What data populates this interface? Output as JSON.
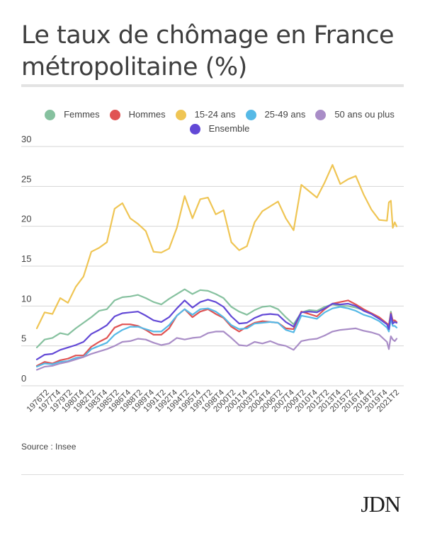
{
  "header": {
    "title_line1": "Le taux de chômage en France",
    "title_line2": "métropolitaine (%)"
  },
  "footer": {
    "source": "Source : Insee",
    "logo": "JDN"
  },
  "chart_data": {
    "type": "line",
    "title": "Le taux de chômage en France métropolitaine (%)",
    "xlabel": "",
    "ylabel": "",
    "ylim": [
      0,
      30
    ],
    "yticks": [
      "0",
      "5",
      "10",
      "15",
      "20",
      "25",
      "30"
    ],
    "grid": true,
    "legend_position": "top-center",
    "x_tick_labels": [
      "1976T2",
      "1977T4",
      "1979T2",
      "1980T4",
      "1982T2",
      "1983T4",
      "1985T2",
      "1986T4",
      "1988T2",
      "1989T4",
      "1991T2",
      "1992T4",
      "1994T2",
      "1995T4",
      "1997T2",
      "1998T4",
      "2000T2",
      "2001T4",
      "2003T2",
      "2004T4",
      "2006T2",
      "2007T4",
      "2009T2",
      "2010T4",
      "2012T2",
      "2013T4",
      "2015T2",
      "2016T4",
      "2018T2",
      "2019T4",
      "2021T2"
    ],
    "x_range": [
      "1975T1",
      "2021T2"
    ],
    "x": [
      1975.0,
      1976.0,
      1977.0,
      1978.0,
      1979.0,
      1980.0,
      1981.0,
      1982.0,
      1983.0,
      1984.0,
      1985.0,
      1986.0,
      1987.0,
      1988.0,
      1989.0,
      1990.0,
      1991.0,
      1992.0,
      1993.0,
      1994.0,
      1995.0,
      1996.0,
      1997.0,
      1998.0,
      1999.0,
      2000.0,
      2001.0,
      2002.0,
      2003.0,
      2004.0,
      2005.0,
      2006.0,
      2007.0,
      2008.0,
      2009.0,
      2010.0,
      2011.0,
      2012.0,
      2013.0,
      2014.0,
      2015.0,
      2016.0,
      2017.0,
      2018.0,
      2019.0,
      2020.0,
      2020.25,
      2020.5,
      2020.75,
      2021.0,
      2021.25
    ],
    "series": [
      {
        "name": "Femmes",
        "color": "#86c19f",
        "values": [
          4.8,
          5.8,
          6.0,
          6.6,
          6.4,
          7.2,
          7.9,
          8.6,
          9.4,
          9.6,
          10.7,
          11.1,
          11.2,
          11.4,
          11.0,
          10.5,
          10.2,
          10.9,
          11.5,
          12.1,
          11.5,
          12.0,
          11.9,
          11.5,
          11.0,
          9.9,
          9.3,
          8.9,
          9.5,
          9.9,
          10.0,
          9.6,
          8.6,
          7.7,
          9.2,
          9.5,
          9.4,
          9.9,
          10.2,
          10.0,
          10.0,
          9.8,
          9.5,
          9.1,
          8.5,
          7.8,
          7.6,
          9.3,
          8.1,
          8.0,
          7.9
        ]
      },
      {
        "name": "Hommes",
        "color": "#e05353",
        "values": [
          2.5,
          3.0,
          2.8,
          3.2,
          3.4,
          3.8,
          3.8,
          4.9,
          5.5,
          6.0,
          7.3,
          7.7,
          7.7,
          7.5,
          7.0,
          6.4,
          6.4,
          7.2,
          8.8,
          9.6,
          8.6,
          9.3,
          9.6,
          9.0,
          8.5,
          7.4,
          6.8,
          7.4,
          7.9,
          8.1,
          8.0,
          7.9,
          7.2,
          7.1,
          9.3,
          9.0,
          8.7,
          9.6,
          10.3,
          10.5,
          10.7,
          10.2,
          9.6,
          9.1,
          8.6,
          7.8,
          7.6,
          9.1,
          8.2,
          8.2,
          8.0
        ]
      },
      {
        "name": "15-24 ans",
        "color": "#efc554",
        "values": [
          7.2,
          9.2,
          9.0,
          11.0,
          10.4,
          12.4,
          13.7,
          16.8,
          17.3,
          18.0,
          22.2,
          22.9,
          21.0,
          20.3,
          19.4,
          16.8,
          16.7,
          17.2,
          19.8,
          23.8,
          21.0,
          23.4,
          23.6,
          21.5,
          22.0,
          18.0,
          17.0,
          17.5,
          20.5,
          21.9,
          22.5,
          23.1,
          21.0,
          19.5,
          25.2,
          24.4,
          23.6,
          25.5,
          27.7,
          25.3,
          25.9,
          26.3,
          24.0,
          22.1,
          20.8,
          20.7,
          23.0,
          23.2,
          19.8,
          20.5,
          20.0
        ]
      },
      {
        "name": "25-49 ans",
        "color": "#56b9e6",
        "values": [
          2.4,
          2.8,
          2.7,
          3.0,
          3.1,
          3.5,
          3.6,
          4.6,
          5.0,
          5.4,
          6.4,
          7.0,
          7.4,
          7.4,
          7.1,
          6.8,
          6.8,
          7.6,
          8.8,
          9.6,
          8.9,
          9.6,
          9.7,
          9.3,
          8.6,
          7.6,
          7.1,
          7.2,
          7.8,
          7.9,
          8.0,
          7.9,
          7.0,
          6.7,
          8.8,
          8.6,
          8.4,
          9.2,
          9.7,
          9.9,
          9.7,
          9.4,
          8.9,
          8.6,
          8.1,
          7.3,
          6.8,
          8.4,
          7.5,
          7.5,
          7.3
        ]
      },
      {
        "name": "50 ans ou plus",
        "color": "#a98dc7",
        "values": [
          2.0,
          2.4,
          2.5,
          2.8,
          3.0,
          3.3,
          3.6,
          4.0,
          4.3,
          4.6,
          5.0,
          5.5,
          5.6,
          5.9,
          5.8,
          5.4,
          5.1,
          5.3,
          6.0,
          5.8,
          6.0,
          6.1,
          6.6,
          6.8,
          6.8,
          6.0,
          5.1,
          5.0,
          5.5,
          5.3,
          5.6,
          5.2,
          5.0,
          4.5,
          5.6,
          5.8,
          5.9,
          6.3,
          6.8,
          7.0,
          7.1,
          7.2,
          6.9,
          6.7,
          6.4,
          5.5,
          4.6,
          6.2,
          5.8,
          5.6,
          5.9
        ]
      },
      {
        "name": "Ensemble",
        "color": "#6248d6",
        "values": [
          3.3,
          3.9,
          4.0,
          4.5,
          4.8,
          5.1,
          5.5,
          6.5,
          7.0,
          7.6,
          8.7,
          9.1,
          9.2,
          9.3,
          8.8,
          8.2,
          8.0,
          8.6,
          9.7,
          10.7,
          9.8,
          10.5,
          10.8,
          10.5,
          9.9,
          8.7,
          7.8,
          7.9,
          8.5,
          8.9,
          9.0,
          8.9,
          8.0,
          7.4,
          9.2,
          9.3,
          9.2,
          9.7,
          10.3,
          10.2,
          10.3,
          10.0,
          9.4,
          9.0,
          8.4,
          7.7,
          7.1,
          9.0,
          7.8,
          8.0,
          7.9
        ]
      }
    ]
  }
}
